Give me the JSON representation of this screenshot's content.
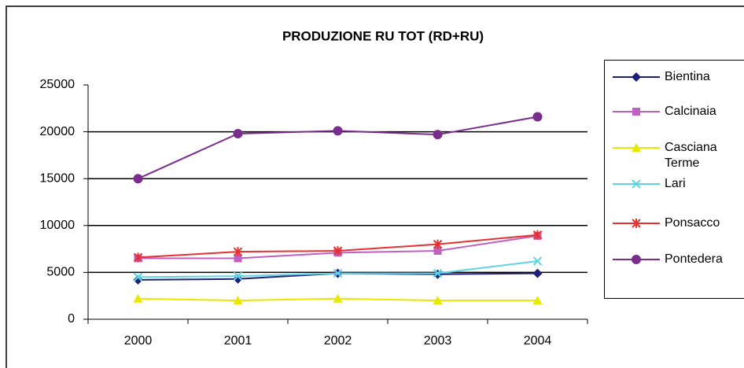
{
  "chart_data": {
    "type": "line",
    "title": "PRODUZIONE RU TOT (RD+RU)",
    "categories": [
      "2000",
      "2001",
      "2002",
      "2003",
      "2004"
    ],
    "series": [
      {
        "name": "Bientina",
        "color": "#1f1f7a",
        "marker": "diamond",
        "values": [
          4200,
          4300,
          4900,
          4800,
          4900
        ]
      },
      {
        "name": "Calcinaia",
        "color": "#c060c0",
        "marker": "square",
        "values": [
          6500,
          6500,
          7100,
          7300,
          8900
        ]
      },
      {
        "name": "Casciana Terme",
        "color": "#e8e800",
        "marker": "triangle",
        "values": [
          2200,
          2000,
          2200,
          2000,
          2000
        ]
      },
      {
        "name": "Lari",
        "color": "#5fd3e6",
        "marker": "x",
        "values": [
          4500,
          4600,
          4900,
          4900,
          6200
        ]
      },
      {
        "name": "Ponsacco",
        "color": "#e83030",
        "marker": "star",
        "values": [
          6600,
          7200,
          7300,
          8000,
          9000
        ]
      },
      {
        "name": "Pontedera",
        "color": "#7b2d8e",
        "marker": "circle",
        "values": [
          15000,
          19800,
          20100,
          19700,
          21600
        ]
      }
    ],
    "ylim": [
      0,
      25000
    ],
    "yticks": [
      0,
      5000,
      10000,
      15000,
      20000,
      25000
    ],
    "grid": true,
    "legend": "right"
  }
}
